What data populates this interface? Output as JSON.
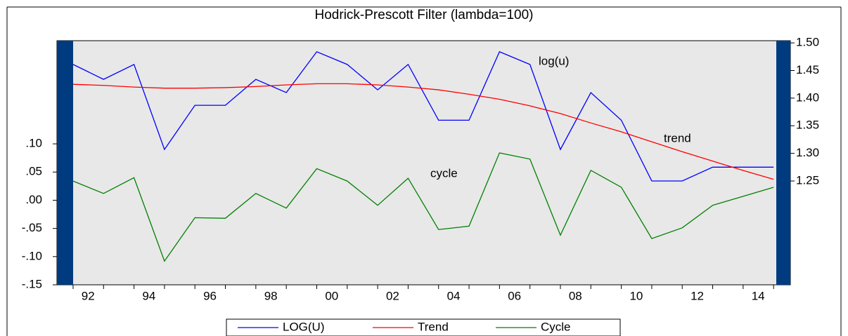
{
  "chart_data": {
    "type": "line",
    "title": "Hodrick-Prescott Filter (lambda=100)",
    "x": [
      1991,
      1992,
      1993,
      1994,
      1995,
      1996,
      1997,
      1998,
      1999,
      2000,
      2001,
      2002,
      2003,
      2004,
      2005,
      2006,
      2007,
      2008,
      2009,
      2010,
      2011,
      2012,
      2013,
      2014
    ],
    "series": [
      {
        "name": "LOG(U)",
        "color": "#0000ff",
        "axis": "y2",
        "values": [
          1.461,
          1.434,
          1.461,
          1.307,
          1.387,
          1.387,
          1.434,
          1.41,
          1.484,
          1.461,
          1.415,
          1.461,
          1.36,
          1.36,
          1.484,
          1.461,
          1.307,
          1.41,
          1.36,
          1.25,
          1.25,
          1.275,
          1.275,
          1.275
        ]
      },
      {
        "name": "Trend",
        "color": "#ff0000",
        "axis": "y2",
        "values": [
          1.425,
          1.423,
          1.42,
          1.418,
          1.418,
          1.419,
          1.421,
          1.424,
          1.426,
          1.426,
          1.424,
          1.42,
          1.415,
          1.407,
          1.398,
          1.386,
          1.372,
          1.355,
          1.339,
          1.321,
          1.303,
          1.286,
          1.269,
          1.253
        ]
      },
      {
        "name": "Cycle",
        "color": "#008000",
        "values": [
          0.034,
          0.012,
          0.04,
          -0.108,
          -0.031,
          -0.032,
          0.012,
          -0.014,
          0.056,
          0.034,
          -0.009,
          0.039,
          -0.052,
          -0.046,
          0.084,
          0.073,
          -0.062,
          0.053,
          0.023,
          -0.068,
          -0.049,
          -0.009,
          0.007,
          0.023
        ]
      }
    ],
    "annotations": [
      "log(u)",
      "trend",
      "cycle"
    ],
    "xlim": [
      1990.47,
      2014.55
    ],
    "xticks": [
      {
        "value": 1992,
        "label": "92"
      },
      {
        "value": 1994,
        "label": "94"
      },
      {
        "value": 1996,
        "label": "96"
      },
      {
        "value": 1998,
        "label": "98"
      },
      {
        "value": 2000,
        "label": "00"
      },
      {
        "value": 2002,
        "label": "02"
      },
      {
        "value": 2004,
        "label": "04"
      },
      {
        "value": 2006,
        "label": "06"
      },
      {
        "value": 2008,
        "label": "08"
      },
      {
        "value": 2010,
        "label": "10"
      },
      {
        "value": 2012,
        "label": "12"
      },
      {
        "value": 2014,
        "label": "14"
      }
    ],
    "xminorticks": [
      1991,
      1993,
      1995,
      1997,
      1999,
      2001,
      2003,
      2005,
      2007,
      2009,
      2011,
      2013
    ],
    "ylim": [
      -0.15,
      0.283
    ],
    "yticks": [
      {
        "value": 0.1,
        "label": ".10"
      },
      {
        "value": 0.05,
        "label": ".05"
      },
      {
        "value": 0,
        "label": ".00"
      },
      {
        "value": -0.05,
        "label": "-.05"
      },
      {
        "value": -0.1,
        "label": "-.10"
      },
      {
        "value": -0.15,
        "label": "-.15"
      }
    ],
    "y2lim": [
      1.062,
      1.504
    ],
    "y2ticks": [
      {
        "value": 1.25,
        "label": "1.25"
      },
      {
        "value": 1.3,
        "label": "1.30"
      },
      {
        "value": 1.35,
        "label": "1.35"
      },
      {
        "value": 1.4,
        "label": "1.40"
      },
      {
        "value": 1.45,
        "label": "1.45"
      },
      {
        "value": 1.5,
        "label": "1.50"
      }
    ]
  }
}
